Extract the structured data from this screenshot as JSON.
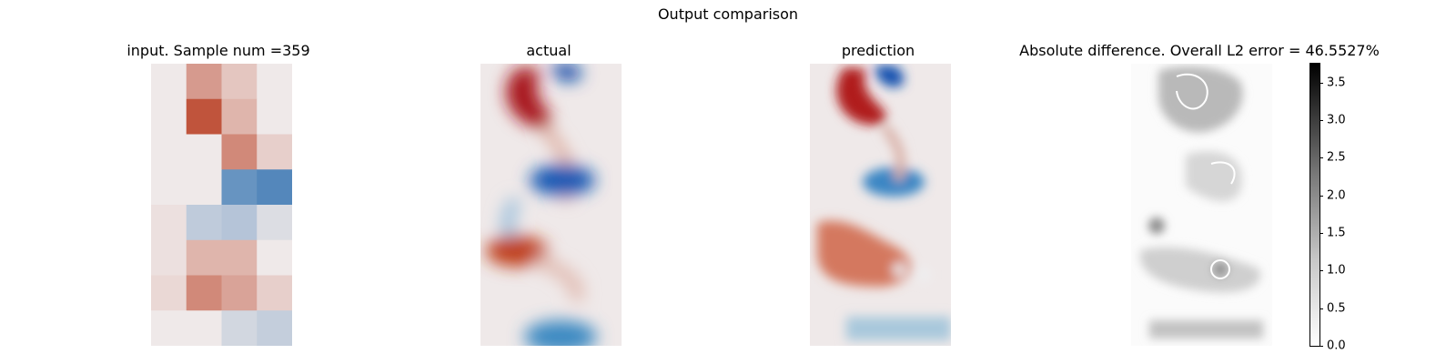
{
  "figure": {
    "title": "Output comparison",
    "colorbar_ticks": [
      "0.0",
      "0.5",
      "1.0",
      "1.5",
      "2.0",
      "2.5",
      "3.0",
      "3.5"
    ]
  },
  "chart_data": [
    {
      "type": "heatmap",
      "title": "input. Sample num =359",
      "colormap": "diverging",
      "colors": {
        "positive": "#b83a1e",
        "negative": "#2d6fb0",
        "zero": "#efe9e9"
      },
      "grid": [
        [
          0.0,
          0.45,
          0.2,
          0.0
        ],
        [
          0.0,
          0.85,
          0.3,
          0.0
        ],
        [
          0.0,
          0.0,
          0.55,
          0.15
        ],
        [
          0.0,
          0.0,
          -0.7,
          -0.8
        ],
        [
          0.05,
          -0.25,
          -0.3,
          -0.1
        ],
        [
          0.05,
          0.3,
          0.3,
          0.0
        ],
        [
          0.1,
          0.55,
          0.4,
          0.15
        ],
        [
          0.0,
          0.0,
          -0.15,
          -0.22
        ]
      ]
    },
    {
      "type": "heatmap",
      "title": "actual",
      "colormap": "diverging",
      "colors": {
        "positive": "#a8141e",
        "negative": "#0b4aa8",
        "zero": "#efe9e9"
      }
    },
    {
      "type": "heatmap",
      "title": "prediction",
      "colormap": "diverging",
      "colors": {
        "positive": "#a8141e",
        "negative": "#0b4aa8",
        "zero": "#efe9e9"
      }
    },
    {
      "type": "heatmap",
      "title": "Absolute difference. Overall L2 error = 46.5527%",
      "colormap": "gray_r",
      "colorbar_range": [
        0.0,
        3.75
      ],
      "colorbar_ticks": [
        0.0,
        0.5,
        1.0,
        1.5,
        2.0,
        2.5,
        3.0,
        3.5
      ]
    }
  ]
}
